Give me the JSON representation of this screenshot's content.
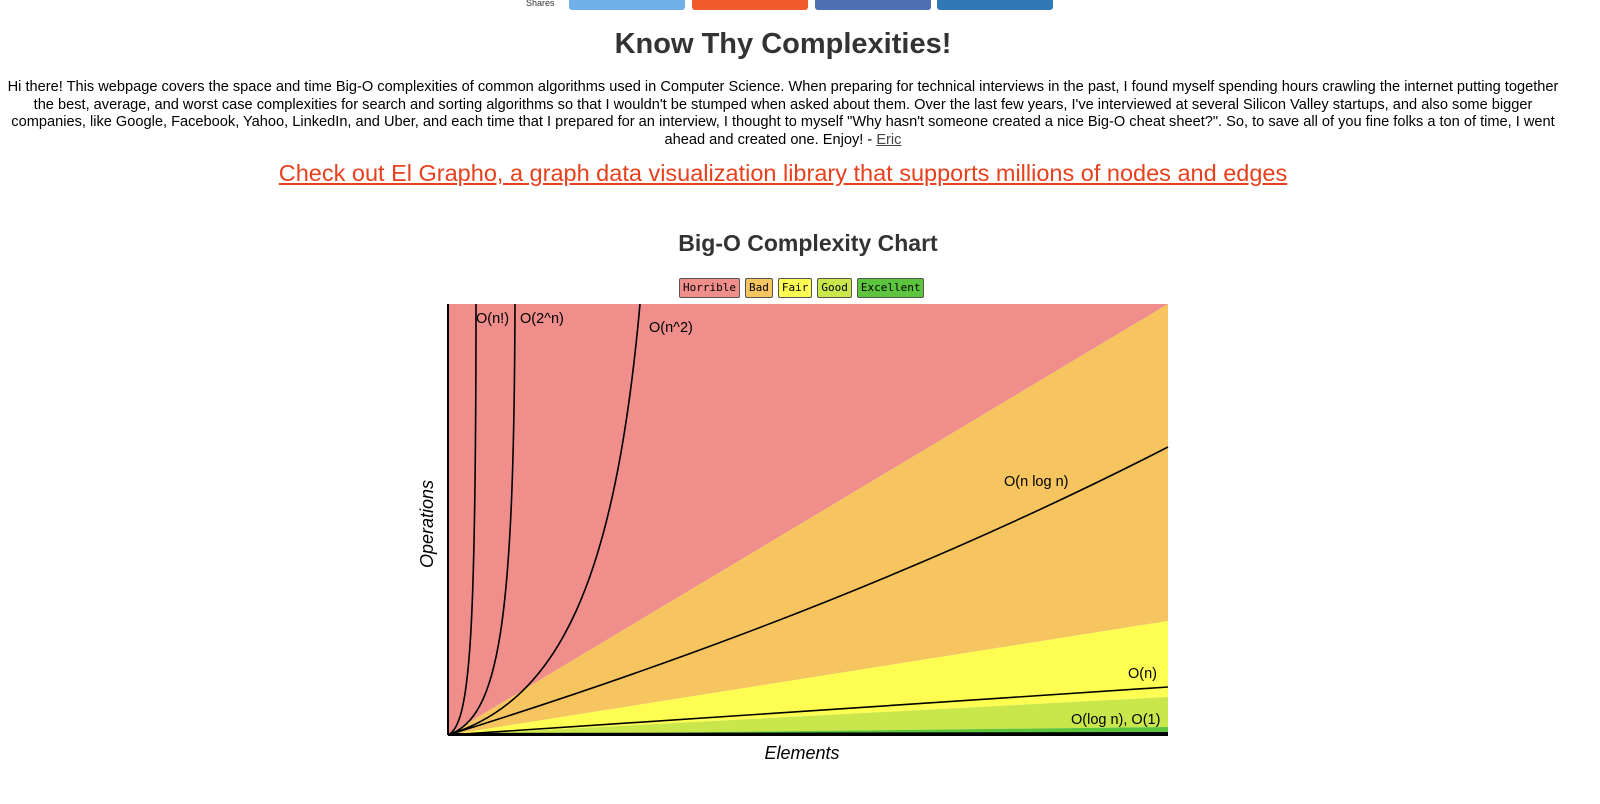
{
  "share": {
    "label": "Shares",
    "buttons": [
      {
        "name": "share-button-twitter",
        "color": "#6fb0e8"
      },
      {
        "name": "share-button-reddit",
        "color": "#ef5a2a"
      },
      {
        "name": "share-button-facebook",
        "color": "#4e6fb3"
      },
      {
        "name": "share-button-linkedin",
        "color": "#3179b6"
      }
    ]
  },
  "page": {
    "title": "Know Thy Complexities!",
    "intro_text": "Hi there!  This webpage covers the space and time Big-O complexities of common algorithms used in Computer Science.  When preparing for technical interviews in the past, I found myself spending hours crawling the internet putting together the best, average, and worst case complexities for search and sorting algorithms so that I wouldn't be stumped when asked about them.  Over the last few years, I've interviewed at several Silicon Valley startups, and also some bigger companies, like Google, Facebook, Yahoo, LinkedIn, and Uber, and each time that I prepared for an interview, I thought to myself \"Why hasn't someone created a nice Big-O cheat sheet?\".  So, to save all of you fine folks a ton of time, I went ahead and created one.  Enjoy! - ",
    "author_link": "Eric",
    "promo_link": "Check out El Grapho, a graph data visualization library that supports millions of nodes and edges"
  },
  "chart_data": {
    "type": "line",
    "title": "Big-O Complexity Chart",
    "xlabel": "Elements",
    "ylabel": "Operations",
    "legend": [
      {
        "label": "Horrible",
        "color": "#ef8e8a"
      },
      {
        "label": "Bad",
        "color": "#f6c55f"
      },
      {
        "label": "Fair",
        "color": "#fefe52"
      },
      {
        "label": "Good",
        "color": "#c9e64b"
      },
      {
        "label": "Excellent",
        "color": "#5dc43d"
      }
    ],
    "legend_position": "top",
    "grid": false,
    "series": [
      {
        "name": "O(n!)"
      },
      {
        "name": "O(2^n)"
      },
      {
        "name": "O(n^2)"
      },
      {
        "name": "O(n log n)"
      },
      {
        "name": "O(n)"
      },
      {
        "name": "O(log n), O(1)"
      }
    ]
  }
}
